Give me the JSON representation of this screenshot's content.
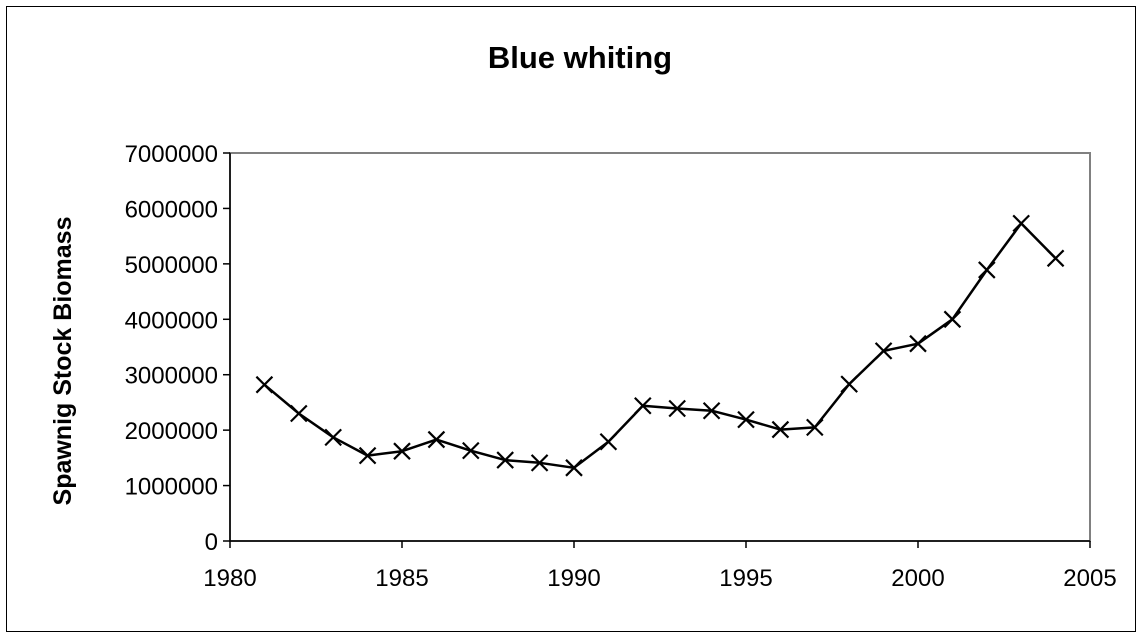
{
  "chart_data": {
    "type": "line",
    "title": "Blue whiting",
    "xlabel": "",
    "ylabel": "Spawnig Stock Biomass",
    "xlim": [
      1980,
      2005
    ],
    "ylim": [
      0,
      7000000
    ],
    "x_ticks": [
      "1980",
      "1985",
      "1990",
      "1995",
      "2000",
      "2005"
    ],
    "y_ticks": [
      "0",
      "1000000",
      "2000000",
      "3000000",
      "4000000",
      "5000000",
      "6000000",
      "7000000"
    ],
    "grid": false,
    "legend": "none",
    "marker": "x",
    "line_color": "#000000",
    "series": [
      {
        "x": [
          1981,
          1982,
          1983,
          1984,
          1985,
          1986,
          1987,
          1988,
          1989,
          1990,
          1991,
          1992,
          1993,
          1994,
          1995,
          1996,
          1997,
          1998,
          1999,
          2000,
          2001,
          2002,
          2003,
          2004
        ],
        "values": [
          2820000,
          2300000,
          1870000,
          1540000,
          1620000,
          1830000,
          1630000,
          1460000,
          1410000,
          1320000,
          1790000,
          2440000,
          2390000,
          2350000,
          2190000,
          2010000,
          2050000,
          2830000,
          3430000,
          3560000,
          4000000,
          4890000,
          5730000,
          5100000
        ]
      }
    ]
  }
}
